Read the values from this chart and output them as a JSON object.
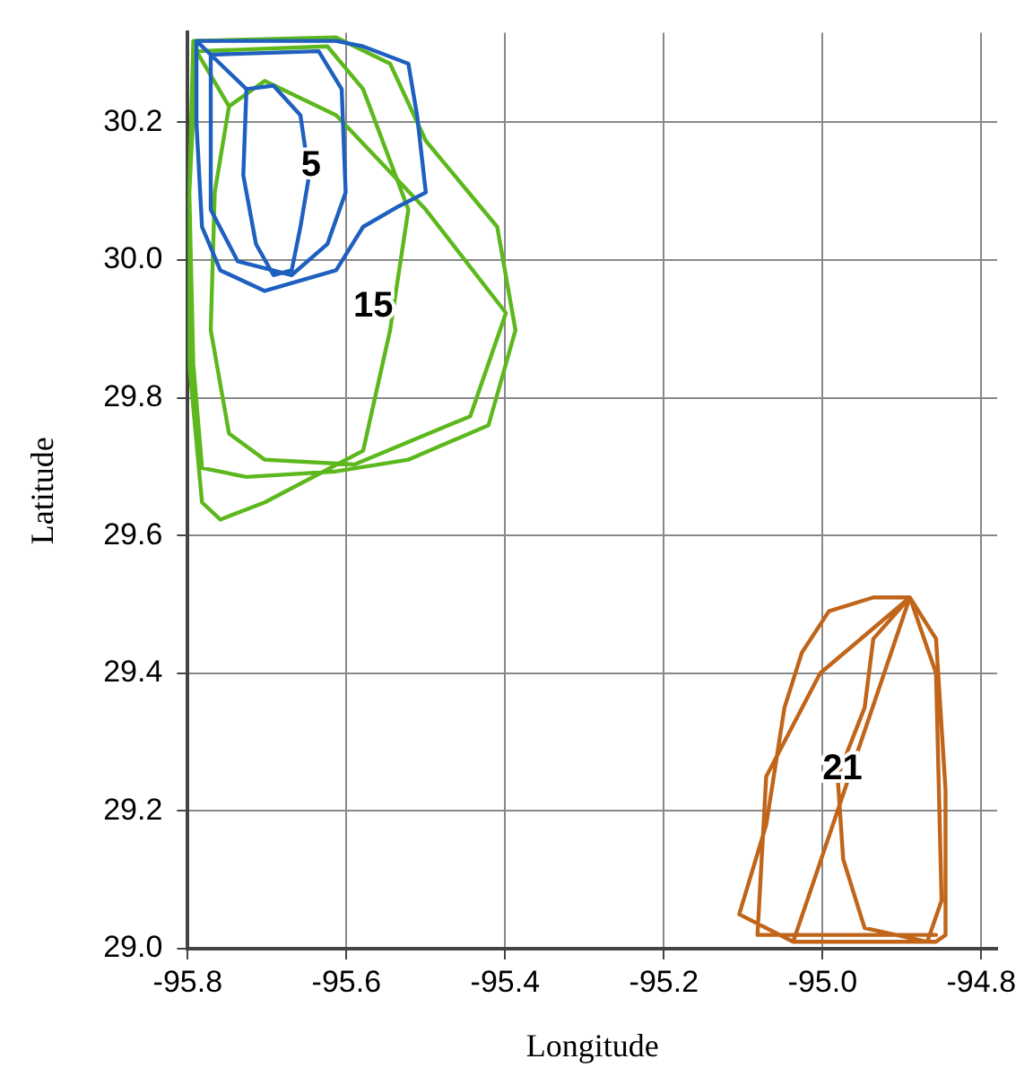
{
  "chart_data": {
    "type": "line",
    "xlabel": "Longitude",
    "ylabel": "Latitude",
    "xlim": [
      -95.8,
      -94.78
    ],
    "ylim": [
      29.0,
      30.33
    ],
    "xticks": [
      {
        "value": -95.8,
        "label": "-95.8"
      },
      {
        "value": -95.6,
        "label": "-95.6"
      },
      {
        "value": -95.4,
        "label": "-95.4"
      },
      {
        "value": -95.2,
        "label": "-95.2"
      },
      {
        "value": -95.0,
        "label": "-95.0"
      },
      {
        "value": -94.8,
        "label": "-94.8"
      }
    ],
    "yticks": [
      {
        "value": 29.0,
        "label": "29.0"
      },
      {
        "value": 29.2,
        "label": "29.2"
      },
      {
        "value": 29.4,
        "label": "29.4"
      },
      {
        "value": 29.6,
        "label": "29.6"
      },
      {
        "value": 29.8,
        "label": "29.8"
      },
      {
        "value": 30.0,
        "label": "30.0"
      },
      {
        "value": 30.2,
        "label": "30.2"
      }
    ],
    "grid": true,
    "legend": false,
    "marker": "none",
    "line_style": "solid",
    "series": [
      {
        "name": "5",
        "color": "#1f5fbf",
        "x": [
          -95.789,
          -95.613,
          -95.579,
          -95.522,
          -95.511,
          -95.5,
          -95.534,
          -95.579,
          -95.613,
          -95.703,
          -95.759,
          -95.782,
          -95.789,
          -95.789,
          -95.771,
          -95.635,
          -95.606,
          -95.601,
          -95.624,
          -95.669,
          -95.737,
          -95.771,
          -95.771,
          -95.726,
          -95.692,
          -95.658,
          -95.647,
          -95.658,
          -95.669,
          -95.692,
          -95.714,
          -95.73,
          -95.726
        ],
        "values": [
          30.318,
          30.318,
          30.31,
          30.285,
          30.21,
          30.098,
          30.078,
          30.048,
          29.985,
          29.955,
          29.985,
          30.048,
          30.198,
          30.318,
          30.298,
          30.303,
          30.248,
          30.098,
          30.023,
          29.978,
          29.998,
          30.073,
          30.298,
          30.248,
          30.253,
          30.21,
          30.123,
          30.048,
          29.985,
          29.978,
          30.023,
          30.123,
          30.248
        ]
      },
      {
        "name": "15",
        "color": "#5cb81c",
        "x": [
          -95.793,
          -95.613,
          -95.545,
          -95.5,
          -95.41,
          -95.387,
          -95.421,
          -95.522,
          -95.613,
          -95.726,
          -95.782,
          -95.793,
          -95.798,
          -95.793,
          -95.789,
          -95.624,
          -95.579,
          -95.522,
          -95.545,
          -95.579,
          -95.703,
          -95.759,
          -95.782,
          -95.798,
          -95.798,
          -95.789,
          -95.748,
          -95.703,
          -95.613,
          -95.5,
          -95.399,
          -95.444,
          -95.59,
          -95.703,
          -95.748,
          -95.771,
          -95.766,
          -95.748
        ],
        "values": [
          30.318,
          30.323,
          30.285,
          30.173,
          30.048,
          29.898,
          29.76,
          29.71,
          29.693,
          29.685,
          29.698,
          29.848,
          30.098,
          30.318,
          30.303,
          30.31,
          30.248,
          30.073,
          29.898,
          29.723,
          29.648,
          29.623,
          29.648,
          29.848,
          30.098,
          30.303,
          30.223,
          30.26,
          30.21,
          30.073,
          29.923,
          29.773,
          29.703,
          29.71,
          29.748,
          29.898,
          30.098,
          30.223
        ]
      },
      {
        "name": "21",
        "color": "#c0651a",
        "x": [
          -95.037,
          -95.105,
          -95.071,
          -95.048,
          -95.026,
          -94.992,
          -94.936,
          -94.89,
          -94.857,
          -94.845,
          -94.845,
          -94.857,
          -95.037,
          -94.89,
          -94.936,
          -94.947,
          -94.981,
          -94.974,
          -94.947,
          -94.868,
          -94.85,
          -94.857,
          -94.89,
          -95.003,
          -95.071,
          -95.082,
          -95.003,
          -94.857
        ],
        "values": [
          29.01,
          29.05,
          29.18,
          29.35,
          29.43,
          29.49,
          29.51,
          29.51,
          29.45,
          29.23,
          29.02,
          29.01,
          29.01,
          29.51,
          29.45,
          29.35,
          29.25,
          29.13,
          29.03,
          29.01,
          29.07,
          29.4,
          29.51,
          29.4,
          29.25,
          29.02,
          29.02,
          29.02
        ]
      }
    ]
  }
}
